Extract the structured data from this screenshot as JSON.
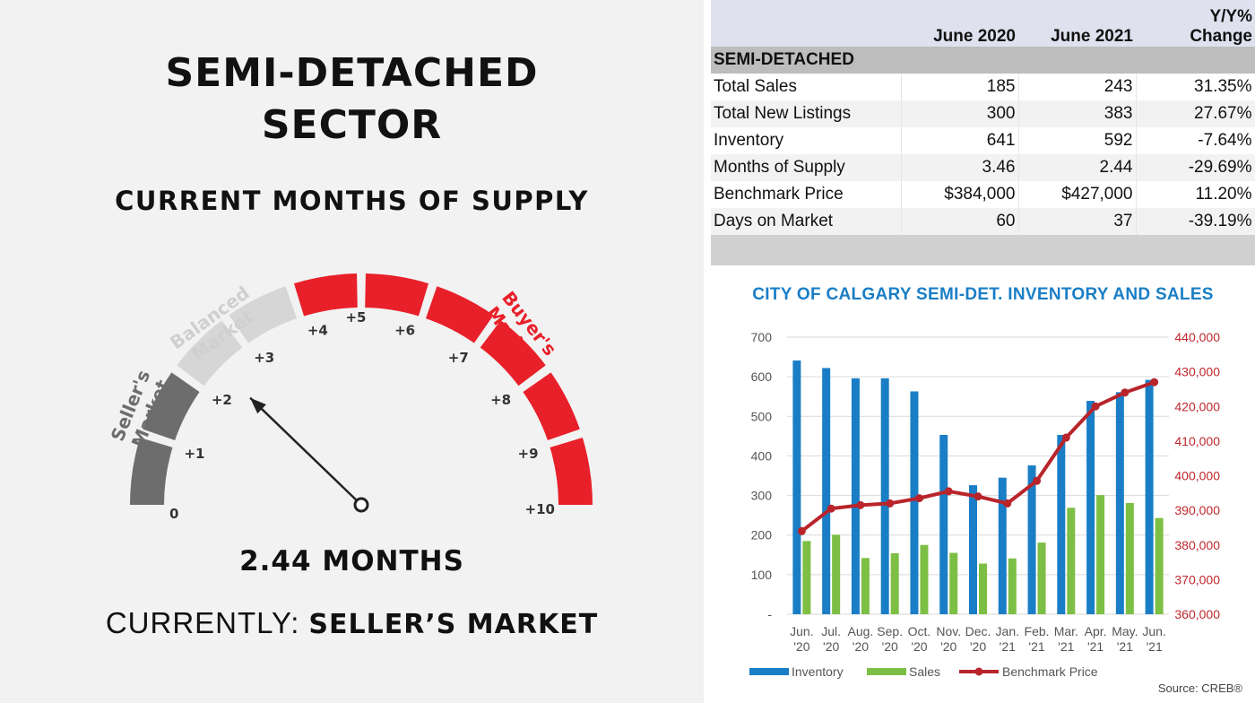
{
  "left": {
    "title_line1": "SEMI-DETACHED",
    "title_line2": "SECTOR",
    "subtitle": "CURRENT MONTHS OF SUPPLY",
    "gauge": {
      "zone_labels": [
        "Seller's\nMarket",
        "Balanced\nMarket",
        "Buyer's\nMarket"
      ],
      "tick_labels": [
        "0",
        "+1",
        "+2",
        "+3",
        "+4",
        "+5",
        "+6",
        "+7",
        "+8",
        "+9",
        "+10"
      ],
      "value": 2.44,
      "colors": {
        "seller": "#6d6d6d",
        "balanced": "#d6d6d6",
        "buyer": "#e8202a"
      }
    },
    "value_text": "2.44 MONTHS",
    "status_prefix": "CURRENTLY:",
    "status_value": "SELLER’S MARKET"
  },
  "table": {
    "headers": [
      "",
      "June 2020",
      "June 2021",
      "Y/Y% Change"
    ],
    "header_change_line1": "Y/Y%",
    "header_change_line2": "Change",
    "section": "SEMI-DETACHED",
    "rows": [
      [
        "Total Sales",
        "185",
        "243",
        "31.35%"
      ],
      [
        "Total New Listings",
        "300",
        "383",
        "27.67%"
      ],
      [
        "Inventory",
        "641",
        "592",
        "-7.64%"
      ],
      [
        "Months of Supply",
        "3.46",
        "2.44",
        "-29.69%"
      ],
      [
        "Benchmark Price",
        "$384,000",
        "$427,000",
        "11.20%"
      ],
      [
        "Days on Market",
        "60",
        "37",
        "-39.19%"
      ]
    ]
  },
  "chart_title": "CITY OF CALGARY SEMI-DET. INVENTORY AND SALES",
  "source": "Source: CREB®",
  "chart_data": {
    "type": "bar",
    "title": "CITY OF CALGARY SEMI-DET. INVENTORY AND SALES",
    "categories": [
      [
        "Jun.",
        "'20"
      ],
      [
        "Jul.",
        "'20"
      ],
      [
        "Aug.",
        "'20"
      ],
      [
        "Sep.",
        "'20"
      ],
      [
        "Oct.",
        "'20"
      ],
      [
        "Nov.",
        "'20"
      ],
      [
        "Dec.",
        "'20"
      ],
      [
        "Jan.",
        "'21"
      ],
      [
        "Feb.",
        "'21"
      ],
      [
        "Mar.",
        "'21"
      ],
      [
        "Apr.",
        "'21"
      ],
      [
        "May.",
        "'21"
      ],
      [
        "Jun.",
        "'21"
      ]
    ],
    "y_left": {
      "ticks": [
        "-",
        "100",
        "200",
        "300",
        "400",
        "500",
        "600",
        "700"
      ],
      "ylim": [
        0,
        700
      ]
    },
    "y_right": {
      "ticks": [
        "360,000",
        "370,000",
        "380,000",
        "390,000",
        "400,000",
        "410,000",
        "420,000",
        "430,000",
        "440,000"
      ],
      "ylim": [
        360000,
        440000
      ]
    },
    "series": [
      {
        "name": "Inventory",
        "type": "bar",
        "axis": "left",
        "color": "#1a7ec6",
        "values": [
          641,
          622,
          596,
          596,
          563,
          453,
          326,
          345,
          376,
          453,
          539,
          561,
          592
        ]
      },
      {
        "name": "Sales",
        "type": "bar",
        "axis": "left",
        "color": "#7dbf44",
        "values": [
          185,
          201,
          142,
          154,
          175,
          155,
          128,
          141,
          181,
          269,
          301,
          281,
          243
        ]
      },
      {
        "name": "Benchmark Price",
        "type": "line",
        "axis": "right",
        "color": "#b9242b",
        "values": [
          384000,
          390500,
          391500,
          392000,
          393500,
          395500,
          394000,
          392000,
          398500,
          411000,
          420000,
          424000,
          427000
        ]
      }
    ],
    "legend_position": "bottom"
  }
}
